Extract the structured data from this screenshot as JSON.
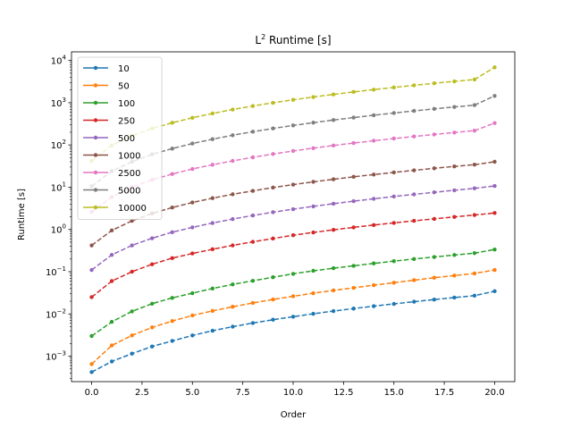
{
  "chart_data": {
    "type": "line",
    "title_main": "L",
    "title_sup": "2",
    "title_rest": " Runtime [s]",
    "xlabel": "Order",
    "ylabel": "Runtime [s]",
    "xlim": [
      -1,
      21
    ],
    "ylim": [
      0.00025,
      16000
    ],
    "yscale": "log",
    "grid": false,
    "legend_position": "upper-left",
    "x_ticks": [
      0,
      2.5,
      5,
      7.5,
      10,
      12.5,
      15,
      17.5,
      20
    ],
    "x_tick_labels": [
      "0.0",
      "2.5",
      "5.0",
      "7.5",
      "10.0",
      "12.5",
      "15.0",
      "17.5",
      "20.0"
    ],
    "y_ticks": [
      0.001,
      0.01,
      0.1,
      1,
      10,
      100,
      1000,
      10000
    ],
    "y_tick_labels": [
      {
        "base": "10",
        "exp": "−3"
      },
      {
        "base": "10",
        "exp": "−2"
      },
      {
        "base": "10",
        "exp": "−1"
      },
      {
        "base": "10",
        "exp": "0"
      },
      {
        "base": "10",
        "exp": "1"
      },
      {
        "base": "10",
        "exp": "2"
      },
      {
        "base": "10",
        "exp": "3"
      },
      {
        "base": "10",
        "exp": "4"
      }
    ],
    "x": [
      0,
      1,
      2,
      3,
      4,
      5,
      6,
      7,
      8,
      9,
      10,
      11,
      12,
      13,
      14,
      15,
      16,
      17,
      18,
      19,
      20
    ],
    "series": [
      {
        "name": "10",
        "color": "#1f77b4",
        "values": [
          0.00042,
          0.00075,
          0.00115,
          0.0017,
          0.0023,
          0.0031,
          0.004,
          0.005,
          0.0061,
          0.0073,
          0.0086,
          0.0101,
          0.0117,
          0.0134,
          0.0153,
          0.0173,
          0.0195,
          0.0219,
          0.0244,
          0.0271,
          0.0345
        ]
      },
      {
        "name": "50",
        "color": "#ff7f0e",
        "values": [
          0.00065,
          0.0018,
          0.0031,
          0.0048,
          0.0068,
          0.0092,
          0.0118,
          0.0148,
          0.0182,
          0.022,
          0.0262,
          0.031,
          0.036,
          0.0415,
          0.048,
          0.055,
          0.063,
          0.072,
          0.081,
          0.091,
          0.11
        ]
      },
      {
        "name": "100",
        "color": "#2ca02c",
        "values": [
          0.003,
          0.0065,
          0.0115,
          0.0175,
          0.024,
          0.031,
          0.04,
          0.05,
          0.061,
          0.074,
          0.089,
          0.105,
          0.121,
          0.138,
          0.157,
          0.178,
          0.2,
          0.223,
          0.248,
          0.275,
          0.335
        ]
      },
      {
        "name": "250",
        "color": "#d62728",
        "values": [
          0.025,
          0.06,
          0.1,
          0.15,
          0.21,
          0.27,
          0.34,
          0.42,
          0.51,
          0.61,
          0.73,
          0.85,
          0.98,
          1.12,
          1.27,
          1.43,
          1.6,
          1.78,
          1.98,
          2.2,
          2.45
        ]
      },
      {
        "name": "500",
        "color": "#9467bd",
        "values": [
          0.11,
          0.25,
          0.42,
          0.62,
          0.86,
          1.12,
          1.42,
          1.76,
          2.14,
          2.56,
          3.02,
          3.52,
          4.07,
          4.67,
          5.32,
          6.02,
          6.77,
          7.58,
          8.46,
          9.4,
          10.7
        ]
      },
      {
        "name": "1000",
        "color": "#8c564b",
        "values": [
          0.42,
          0.95,
          1.6,
          2.4,
          3.3,
          4.35,
          5.5,
          6.8,
          8.2,
          9.8,
          11.5,
          13.4,
          15.4,
          17.6,
          19.9,
          22.4,
          25.1,
          28,
          31,
          34.2,
          40
        ]
      },
      {
        "name": "2500",
        "color": "#e377c2",
        "values": [
          2.6,
          5.9,
          10,
          15,
          20.5,
          27,
          34,
          42,
          51,
          61,
          72,
          84,
          97,
          111,
          126,
          142,
          159,
          177,
          197,
          218,
          330
        ]
      },
      {
        "name": "5000",
        "color": "#7f7f7f",
        "values": [
          10.5,
          24,
          40,
          60,
          82,
          108,
          137,
          170,
          206,
          246,
          290,
          337,
          389,
          445,
          505,
          570,
          640,
          714,
          793,
          877,
          1450
        ]
      },
      {
        "name": "10000",
        "color": "#bcbd22",
        "values": [
          42,
          97,
          165,
          245,
          335,
          440,
          557,
          690,
          835,
          995,
          1170,
          1365,
          1570,
          1800,
          2040,
          2300,
          2580,
          2880,
          3200,
          3540,
          6900
        ]
      }
    ]
  }
}
